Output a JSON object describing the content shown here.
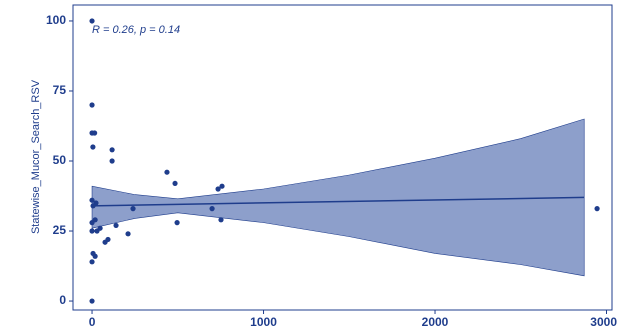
{
  "chart_data": {
    "type": "scatter",
    "annotation": "R = 0.26, p = 0.14",
    "y_label": "Statewise_Mucor_Search_RSV",
    "xlim": [
      -111,
      3032
    ],
    "ylim": [
      -3.2,
      105.7
    ],
    "xticks": [
      0,
      1000,
      2000,
      3000
    ],
    "yticks": [
      0,
      25,
      50,
      75,
      100
    ],
    "color": "#1f3d8c",
    "band_color": "#8d9fcb",
    "series": [
      {
        "x": [
          0,
          0,
          0,
          15,
          5,
          0,
          23,
          6,
          18,
          0,
          0,
          29,
          6,
          18,
          0,
          0,
          117,
          117,
          47,
          93,
          76,
          140,
          210,
          239,
          437,
          484,
          496,
          700,
          735,
          758,
          752,
          2945
        ],
        "values": [
          100,
          70,
          60,
          60,
          55,
          36,
          35,
          34,
          29,
          28,
          25,
          25,
          17,
          16,
          14,
          0,
          54,
          50,
          26,
          22,
          21,
          27,
          24,
          33,
          46,
          42,
          28,
          33,
          40,
          41,
          29,
          33
        ]
      }
    ],
    "fit": {
      "x": [
        0,
        2870
      ],
      "values": [
        34,
        37
      ]
    },
    "band": {
      "x": [
        0,
        250,
        500,
        1000,
        1500,
        2000,
        2500,
        2870
      ],
      "upper": [
        41,
        38,
        36.5,
        40,
        45,
        51,
        58,
        65
      ],
      "lower": [
        26,
        29.5,
        31.5,
        28,
        23,
        17,
        13,
        9
      ]
    }
  }
}
